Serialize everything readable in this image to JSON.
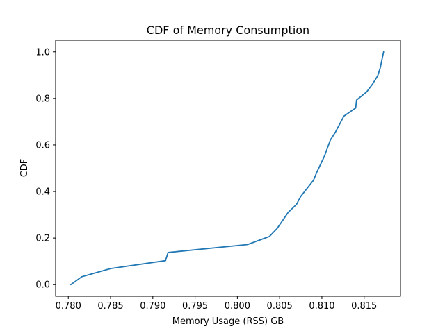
{
  "chart_data": {
    "type": "line",
    "title": "CDF of Memory Consumption",
    "xlabel": "Memory Usage (RSS) GB",
    "ylabel": "CDF",
    "xlim": [
      0.7785,
      0.8193
    ],
    "ylim": [
      -0.05,
      1.05
    ],
    "xticks": [
      "0.780",
      "0.785",
      "0.790",
      "0.795",
      "0.800",
      "0.805",
      "0.810",
      "0.815"
    ],
    "yticks": [
      "0.0",
      "0.2",
      "0.4",
      "0.6",
      "0.8",
      "1.0"
    ],
    "grid": false,
    "series": [
      {
        "color": "#1f77b4",
        "x": [
          0.7803,
          0.7816,
          0.785,
          0.7915,
          0.7918,
          0.8012,
          0.8038,
          0.8047,
          0.8055,
          0.806,
          0.807,
          0.8075,
          0.809,
          0.8094,
          0.8103,
          0.811,
          0.8116,
          0.8126,
          0.814,
          0.8141,
          0.8153,
          0.816,
          0.8166,
          0.8169,
          0.8173
        ],
        "y": [
          0.0,
          0.034,
          0.069,
          0.103,
          0.138,
          0.172,
          0.207,
          0.241,
          0.283,
          0.31,
          0.345,
          0.379,
          0.448,
          0.483,
          0.552,
          0.621,
          0.655,
          0.724,
          0.759,
          0.793,
          0.828,
          0.862,
          0.897,
          0.931,
          1.0
        ]
      }
    ]
  }
}
